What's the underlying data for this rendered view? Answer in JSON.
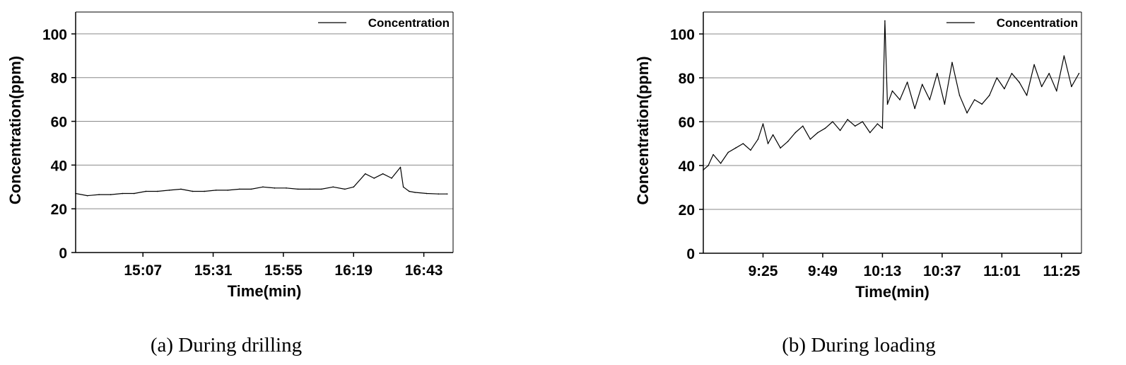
{
  "chart_data": [
    {
      "type": "line",
      "caption": "(a) During drilling",
      "xlabel": "Time(min)",
      "ylabel": "Concentration(ppm)",
      "ylim": [
        0,
        110
      ],
      "yticks": [
        0,
        20,
        40,
        60,
        80,
        100
      ],
      "x_range": [
        "14:44",
        "16:53"
      ],
      "x_tick_labels": [
        "15:07",
        "15:31",
        "15:55",
        "16:19",
        "16:43"
      ],
      "grid": "horizontal",
      "legend_position": "top-right",
      "series": [
        {
          "name": "Concentration",
          "x": [
            "14:44",
            "14:48",
            "14:52",
            "14:56",
            "15:00",
            "15:04",
            "15:08",
            "15:12",
            "15:16",
            "15:20",
            "15:24",
            "15:28",
            "15:32",
            "15:36",
            "15:40",
            "15:44",
            "15:48",
            "15:52",
            "15:56",
            "16:00",
            "16:04",
            "16:08",
            "16:12",
            "16:16",
            "16:19",
            "16:23",
            "16:26",
            "16:29",
            "16:32",
            "16:35",
            "16:36",
            "16:38",
            "16:40",
            "16:44",
            "16:48",
            "16:51"
          ],
          "y": [
            27,
            26,
            26.5,
            26.5,
            27,
            27,
            28,
            28,
            28.5,
            29,
            28,
            28,
            28.5,
            28.5,
            29,
            29,
            30,
            29.5,
            29.5,
            29,
            29,
            29,
            30,
            29,
            30,
            36,
            34,
            36,
            34,
            39,
            30,
            28,
            27.5,
            27,
            26.8,
            26.8
          ]
        }
      ]
    },
    {
      "type": "line",
      "caption": "(b) During loading",
      "xlabel": "Time(min)",
      "ylabel": "Concentration(ppm)",
      "ylim": [
        0,
        110
      ],
      "yticks": [
        0,
        20,
        40,
        60,
        80,
        100
      ],
      "x_range": [
        "9:01",
        "11:33"
      ],
      "x_tick_labels": [
        "9:25",
        "9:49",
        "10:13",
        "10:37",
        "11:01",
        "11:25"
      ],
      "grid": "horizontal",
      "legend_position": "top-right",
      "series": [
        {
          "name": "Concentration",
          "x": [
            "9:01",
            "9:03",
            "9:05",
            "9:08",
            "9:11",
            "9:14",
            "9:17",
            "9:20",
            "9:23",
            "9:25",
            "9:27",
            "9:29",
            "9:32",
            "9:35",
            "9:38",
            "9:41",
            "9:44",
            "9:47",
            "9:50",
            "9:53",
            "9:56",
            "9:59",
            "10:02",
            "10:05",
            "10:08",
            "10:11",
            "10:13",
            "10:14",
            "10:15",
            "10:17",
            "10:20",
            "10:23",
            "10:26",
            "10:29",
            "10:32",
            "10:35",
            "10:38",
            "10:41",
            "10:44",
            "10:47",
            "10:50",
            "10:53",
            "10:56",
            "10:59",
            "11:02",
            "11:05",
            "11:08",
            "11:11",
            "11:14",
            "11:17",
            "11:20",
            "11:23",
            "11:26",
            "11:29",
            "11:32"
          ],
          "y": [
            38,
            40,
            45,
            41,
            46,
            48,
            50,
            47,
            52,
            59,
            50,
            54,
            48,
            51,
            55,
            58,
            52,
            55,
            57,
            60,
            56,
            61,
            58,
            60,
            55,
            59,
            57,
            106,
            68,
            74,
            70,
            78,
            66,
            77,
            70,
            82,
            68,
            87,
            72,
            64,
            70,
            68,
            72,
            80,
            75,
            82,
            78,
            72,
            86,
            76,
            82,
            74,
            90,
            76,
            82
          ]
        }
      ]
    }
  ]
}
